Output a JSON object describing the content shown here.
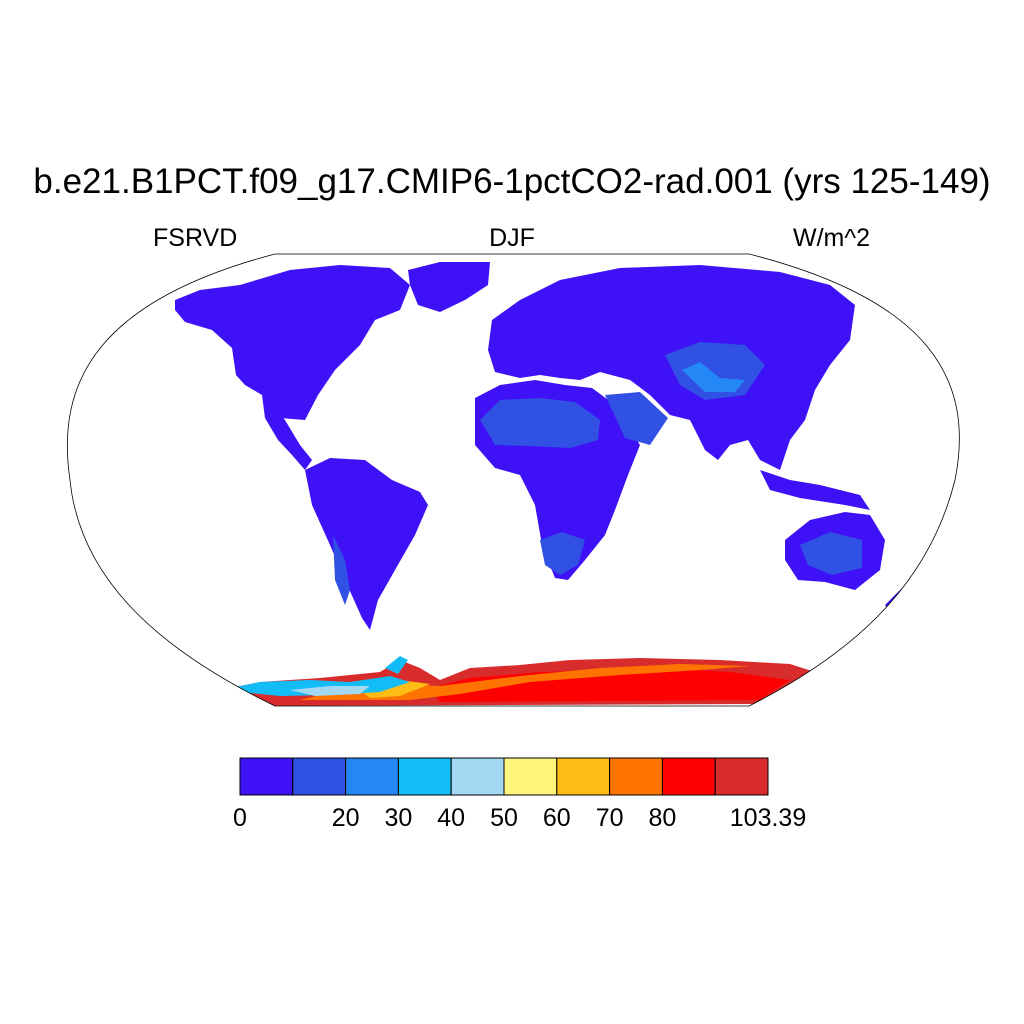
{
  "title": "b.e21.B1PCT.f09_g17.CMIP6-1pctCO2-rad.001 (yrs 125-149)",
  "left_label": "FSRVD",
  "center_label": "DJF",
  "right_label": "W/m^2",
  "colorbar": {
    "colors": [
      "#3e11f7",
      "#3150e4",
      "#2387f5",
      "#12bdf7",
      "#a2d8f2",
      "#fff57d",
      "#ffbc15",
      "#ff7300",
      "#ff0000",
      "#d82c2c"
    ],
    "labels": [
      {
        "text": "0",
        "boundary": 0
      },
      {
        "text": "20",
        "boundary": 2
      },
      {
        "text": "30",
        "boundary": 3
      },
      {
        "text": "40",
        "boundary": 4
      },
      {
        "text": "50",
        "boundary": 5
      },
      {
        "text": "60",
        "boundary": 6
      },
      {
        "text": "70",
        "boundary": 7
      },
      {
        "text": "80",
        "boundary": 8
      },
      {
        "text": "103.39",
        "boundary": 10
      }
    ]
  }
}
